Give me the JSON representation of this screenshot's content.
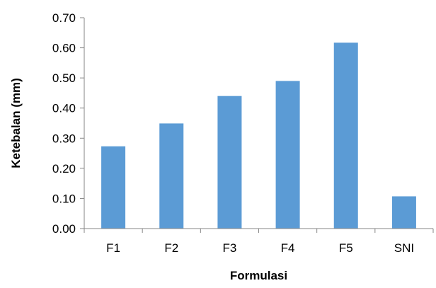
{
  "chart_data": {
    "type": "bar",
    "title": "",
    "xlabel": "Formulasi",
    "ylabel": "Ketebalan (mm)",
    "categories": [
      "F1",
      "F2",
      "F3",
      "F4",
      "F5",
      "SNI"
    ],
    "values": [
      0.273,
      0.349,
      0.44,
      0.49,
      0.617,
      0.107
    ],
    "ylim": [
      0,
      0.7
    ],
    "yticks": [
      "0.00",
      "0.10",
      "0.20",
      "0.30",
      "0.40",
      "0.50",
      "0.60",
      "0.70"
    ],
    "bar_color": "#5B9BD5",
    "grid": false,
    "legend": "none"
  }
}
